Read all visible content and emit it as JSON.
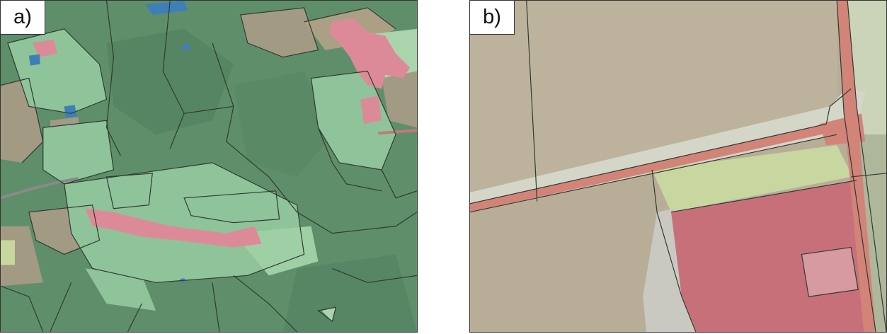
{
  "panels": [
    {
      "label": "a)"
    },
    {
      "label": "b)"
    }
  ],
  "colors": {
    "forest": "#5f8f6a",
    "forest_dark": "#4f7c5b",
    "meadow": "#8fc39a",
    "meadow_light": "#a9d4ac",
    "arable": "#a39a84",
    "arable_light": "#b9b09a",
    "built_up": "#dd8a98",
    "built_up_b": "#c8707a",
    "road": "#d28479",
    "water": "#3f7fb7",
    "field_yellow": "#c8d7a0",
    "bare": "#c9c9c2",
    "boundary": "#2f3a33"
  }
}
